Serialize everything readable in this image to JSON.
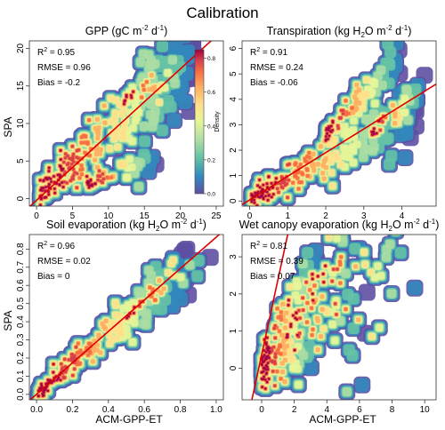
{
  "figure_title": "Calibration",
  "shared": {
    "ylabel": "SPA",
    "xlabel": "ACM-GPP-ET",
    "legend": {
      "title": "Density",
      "ticks": [
        "0.0",
        "0.2",
        "0.4",
        "0.6",
        "0.8"
      ],
      "colors": [
        "#5e4fa2",
        "#3288bd",
        "#66c2a5",
        "#abdda4",
        "#e6f598",
        "#fee08b",
        "#fdae61",
        "#f46d43",
        "#d53e4f",
        "#9e0142"
      ]
    },
    "fit_line_color": "#dd0000"
  },
  "chart_data": [
    {
      "type": "scatter",
      "title_main": "GPP (gC m",
      "title_exp1": "-2",
      "title_mid": " d",
      "title_exp2": "-1",
      "title_end": ")",
      "xlim": [
        -1,
        26
      ],
      "ylim": [
        -1,
        21
      ],
      "xticks": [
        0,
        5,
        10,
        15,
        20,
        25
      ],
      "yticks": [
        0,
        5,
        10,
        15,
        20
      ],
      "stats": {
        "r2_label": "R",
        "r2_exp": "2",
        "r2_value": " = 0.95",
        "rmse": "RMSE = 0.96",
        "bias": "Bias = -0.2"
      },
      "fit_line": {
        "x": [
          -1,
          26
        ],
        "y": [
          -1.1,
          22.5
        ]
      },
      "clouds": [
        {
          "x0": 0.5,
          "y0": 0.5,
          "x1": 22,
          "y1": 20,
          "spread": 2.6,
          "n": 260
        },
        {
          "x0": 7,
          "y0": 2,
          "x1": 17,
          "y1": 5,
          "spread": 1.0,
          "n": 50
        },
        {
          "x0": 12,
          "y0": 13,
          "x1": 22,
          "y1": 18,
          "spread": 1.1,
          "n": 35
        }
      ]
    },
    {
      "type": "scatter",
      "title_main": "Transpiration (kg H",
      "title_sub": "2",
      "title_mid": "O m",
      "title_exp1": "-2",
      "title_mid2": " d",
      "title_exp2": "-1",
      "title_end": ")",
      "xlim": [
        -0.2,
        4.9
      ],
      "ylim": [
        -0.2,
        6.3
      ],
      "xticks": [
        0,
        1,
        2,
        3,
        4
      ],
      "yticks": [
        0,
        1,
        2,
        3,
        4,
        5,
        6
      ],
      "stats": {
        "r2_label": "R",
        "r2_exp": "2",
        "r2_value": " = 0.91",
        "rmse": "RMSE = 0.24",
        "bias": "Bias = -0.06"
      },
      "fit_line": {
        "x": [
          -0.2,
          4.9
        ],
        "y": [
          -0.14,
          4.6
        ]
      },
      "clouds": [
        {
          "x0": 0.05,
          "y0": 0.05,
          "x1": 4.4,
          "y1": 3.6,
          "spread": 0.5,
          "n": 220
        },
        {
          "x0": 2.0,
          "y0": 2.6,
          "x1": 4.0,
          "y1": 5.8,
          "spread": 0.35,
          "n": 90
        },
        {
          "x0": 3.2,
          "y0": 2.7,
          "x1": 4.6,
          "y1": 4.5,
          "spread": 0.3,
          "n": 40
        }
      ]
    },
    {
      "type": "scatter",
      "title_main": "Soil evaporation (kg H",
      "title_sub": "2",
      "title_mid": "O m",
      "title_exp1": "-2",
      "title_mid2": " d",
      "title_exp2": "-1",
      "title_end": ")",
      "xlim": [
        -0.04,
        1.04
      ],
      "ylim": [
        -0.03,
        0.88
      ],
      "xticks": [
        0.0,
        0.2,
        0.4,
        0.6,
        0.8,
        1.0
      ],
      "yticks": [
        0.0,
        0.1,
        0.2,
        0.3,
        0.4,
        0.5,
        0.6,
        0.7,
        0.8
      ],
      "xtick_labels": [
        "0.0",
        "0.2",
        "0.4",
        "0.6",
        "0.8",
        "1.0"
      ],
      "ytick_labels": [
        "0.0",
        "0.1",
        "0.2",
        "0.3",
        "0.4",
        "0.5",
        "0.6",
        "0.7",
        "0.8"
      ],
      "stats": {
        "r2_label": "R",
        "r2_exp": "2",
        "r2_value": " = 0.96",
        "rmse": "RMSE = 0.02",
        "bias": "Bias = 0"
      },
      "fit_line": {
        "x": [
          -0.04,
          1.04
        ],
        "y": [
          -0.034,
          0.9
        ]
      },
      "clouds": [
        {
          "x0": 0.01,
          "y0": 0.01,
          "x1": 0.85,
          "y1": 0.72,
          "spread": 0.06,
          "n": 240
        },
        {
          "x0": 0.5,
          "y0": 0.42,
          "x1": 0.98,
          "y1": 0.85,
          "spread": 0.04,
          "n": 30
        }
      ]
    },
    {
      "type": "scatter",
      "title_main": "Wet canopy evaporation (kg H",
      "title_sub": "2",
      "title_mid": "O m",
      "title_exp1": "-2",
      "title_mid2": " d",
      "title_exp2": "-1",
      "title_end": ")",
      "xlim": [
        -1.2,
        10.7
      ],
      "ylim": [
        -0.85,
        3.6
      ],
      "xticks": [
        0,
        2,
        4,
        6,
        8,
        10
      ],
      "yticks": [
        0,
        1,
        2,
        3
      ],
      "stats": {
        "r2_label": "R",
        "r2_exp": "2",
        "r2_value": " = 0.81",
        "rmse": "RMSE = 0.39",
        "bias": "Bias = 0.07"
      },
      "fit_line": {
        "x": [
          -0.6,
          1.6
        ],
        "y": [
          -0.85,
          3.6
        ]
      },
      "clouds": [
        {
          "x0": 0.0,
          "y0": 0.0,
          "x1": 3.5,
          "y1": 1.8,
          "spread": 0.8,
          "n": 200
        },
        {
          "x0": 1.5,
          "y0": 1.2,
          "x1": 6.5,
          "y1": 2.2,
          "spread": 0.9,
          "n": 70
        },
        {
          "x0": 3.0,
          "y0": 2.0,
          "x1": 10.0,
          "y1": 3.0,
          "spread": 1.0,
          "n": 40
        }
      ]
    }
  ]
}
